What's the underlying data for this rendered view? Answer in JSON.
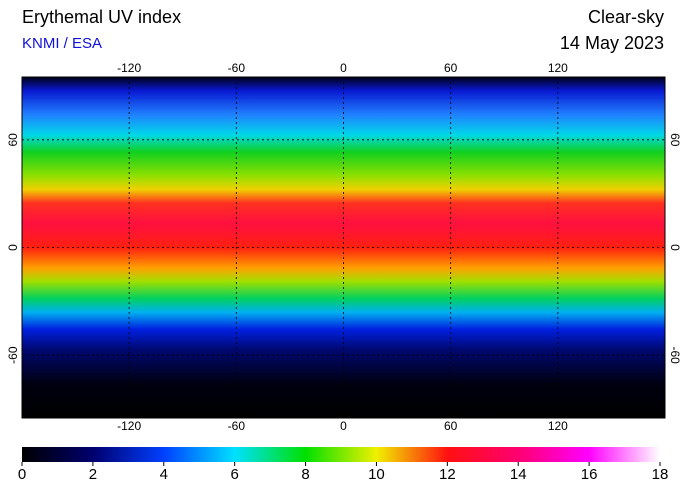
{
  "header": {
    "title": "Erythemal UV index",
    "source": "KNMI / ESA",
    "mode": "Clear-sky",
    "date": "14 May 2023"
  },
  "map": {
    "xlim": [
      -180,
      180
    ],
    "ylim": [
      -95,
      95
    ],
    "xticks": [
      -120,
      -60,
      0,
      60,
      120
    ],
    "yticks": [
      -60,
      0,
      60
    ]
  },
  "colorbar": {
    "lim": [
      0,
      18
    ],
    "ticks": [
      0,
      2,
      4,
      6,
      8,
      10,
      12,
      14,
      16,
      18
    ],
    "colors": [
      "#000000",
      "#00006e",
      "#0040ff",
      "#00e0ff",
      "#00e000",
      "#f0f000",
      "#ff1010",
      "#ff0070",
      "#ff00ff",
      "#ffffff"
    ]
  }
}
